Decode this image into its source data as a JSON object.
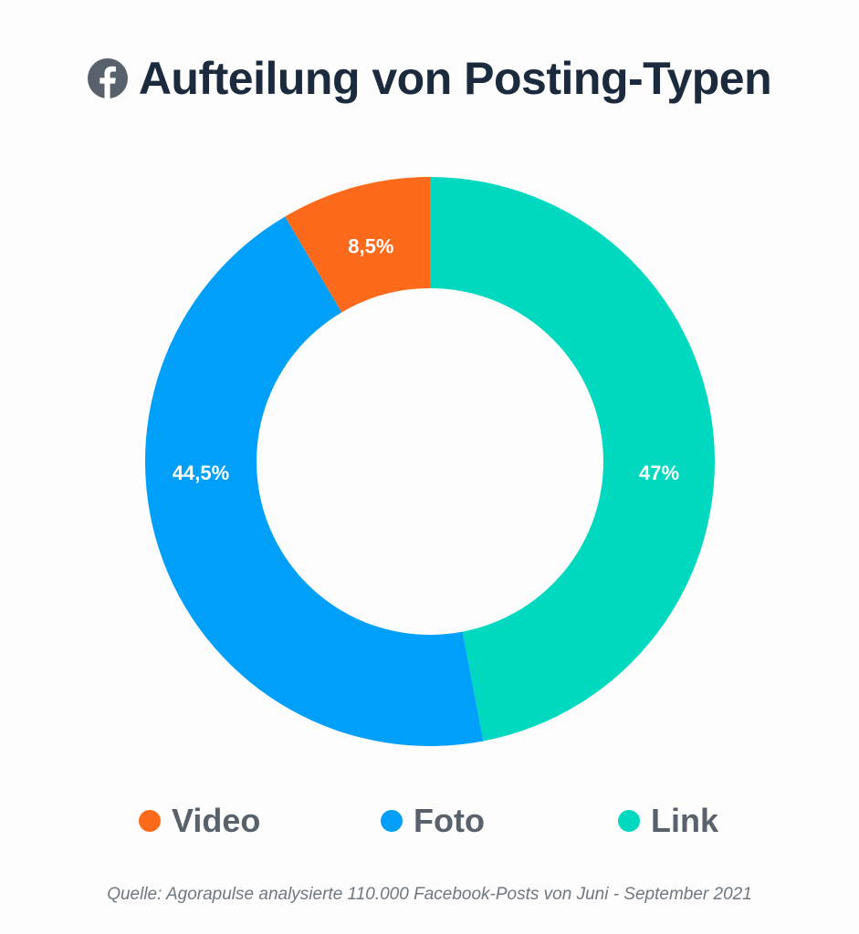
{
  "header": {
    "icon": "facebook-icon",
    "title": "Aufteilung von Posting-Typen"
  },
  "chart_data": {
    "type": "pie",
    "variant": "donut",
    "title": "Aufteilung von Posting-Typen",
    "series": [
      {
        "name": "Link",
        "value": 47,
        "label": "47%",
        "color": "#00d9c0"
      },
      {
        "name": "Foto",
        "value": 44.5,
        "label": "44,5%",
        "color": "#009ffa"
      },
      {
        "name": "Video",
        "value": 8.5,
        "label": "8,5%",
        "color": "#fd6a1b"
      }
    ],
    "legend": {
      "position": "bottom",
      "entries": [
        {
          "label": "Video",
          "color": "#fd6a1b"
        },
        {
          "label": "Foto",
          "color": "#009ffa"
        },
        {
          "label": "Link",
          "color": "#00d9c0"
        }
      ]
    }
  },
  "footer": {
    "source": "Quelle: Agorapulse analysierte 110.000 Facebook-Posts von Juni - September 2021"
  },
  "colors": {
    "title": "#1b2a3d",
    "legend_text": "#59616c",
    "source_text": "#6f7780",
    "background": "#fdfdfd"
  }
}
